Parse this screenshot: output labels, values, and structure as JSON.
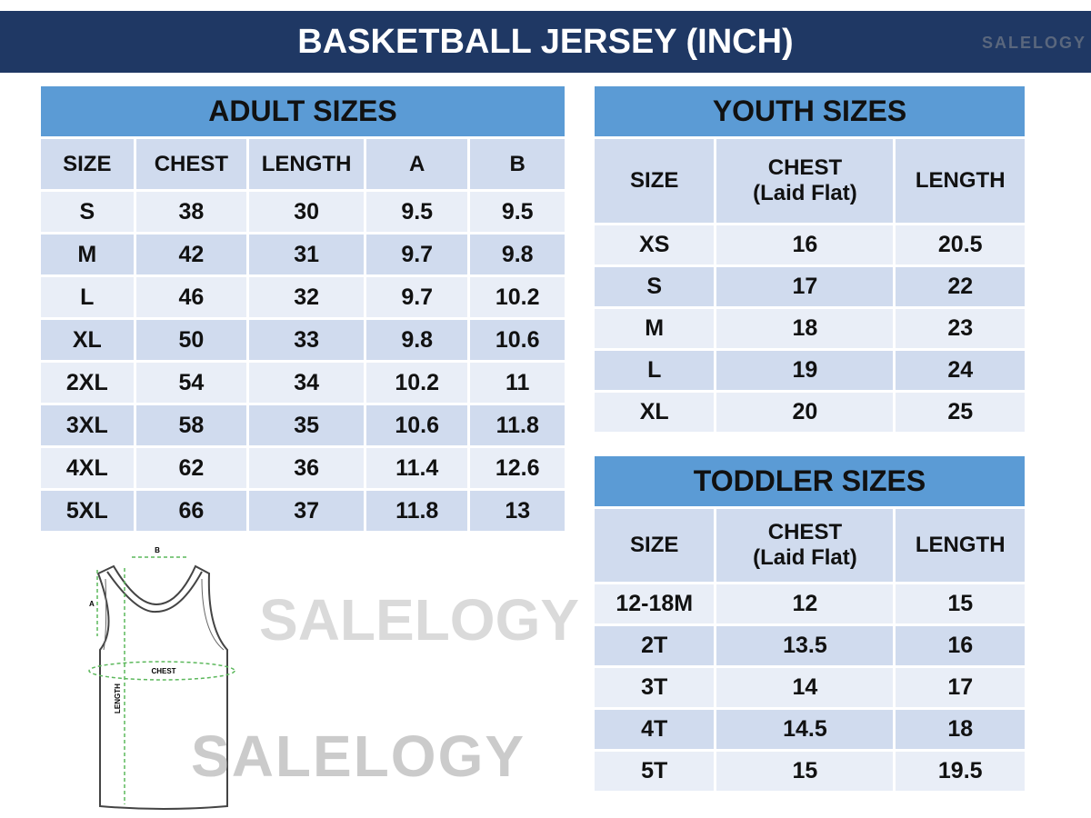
{
  "header": {
    "title": "BASKETBALL JERSEY (INCH)"
  },
  "watermark": "SALELOGY",
  "adult": {
    "title": "ADULT SIZES",
    "columns": [
      "SIZE",
      "CHEST",
      "LENGTH",
      "A",
      "B"
    ],
    "rows": [
      [
        "S",
        "38",
        "30",
        "9.5",
        "9.5"
      ],
      [
        "M",
        "42",
        "31",
        "9.7",
        "9.8"
      ],
      [
        "L",
        "46",
        "32",
        "9.7",
        "10.2"
      ],
      [
        "XL",
        "50",
        "33",
        "9.8",
        "10.6"
      ],
      [
        "2XL",
        "54",
        "34",
        "10.2",
        "11"
      ],
      [
        "3XL",
        "58",
        "35",
        "10.6",
        "11.8"
      ],
      [
        "4XL",
        "62",
        "36",
        "11.4",
        "12.6"
      ],
      [
        "5XL",
        "66",
        "37",
        "11.8",
        "13"
      ]
    ]
  },
  "youth": {
    "title": "YOUTH SIZES",
    "columns": [
      "SIZE",
      "CHEST",
      "(Laid Flat)",
      "LENGTH"
    ],
    "rows": [
      [
        "XS",
        "16",
        "20.5"
      ],
      [
        "S",
        "17",
        "22"
      ],
      [
        "M",
        "18",
        "23"
      ],
      [
        "L",
        "19",
        "24"
      ],
      [
        "XL",
        "20",
        "25"
      ]
    ]
  },
  "toddler": {
    "title": "TODDLER SIZES",
    "columns": [
      "SIZE",
      "CHEST",
      "(Laid Flat)",
      "LENGTH"
    ],
    "rows": [
      [
        "12-18M",
        "12",
        "15"
      ],
      [
        "2T",
        "13.5",
        "16"
      ],
      [
        "3T",
        "14",
        "17"
      ],
      [
        "4T",
        "14.5",
        "18"
      ],
      [
        "5T",
        "15",
        "19.5"
      ]
    ]
  },
  "diagram": {
    "labels": {
      "a": "A",
      "b": "B",
      "chest": "CHEST",
      "length": "LENGTH"
    }
  },
  "colors": {
    "banner": "#1f3864",
    "title": "#5b9bd5",
    "header": "#d0dbee",
    "row_light": "#e9eef7",
    "measure": "#5cb85c"
  }
}
